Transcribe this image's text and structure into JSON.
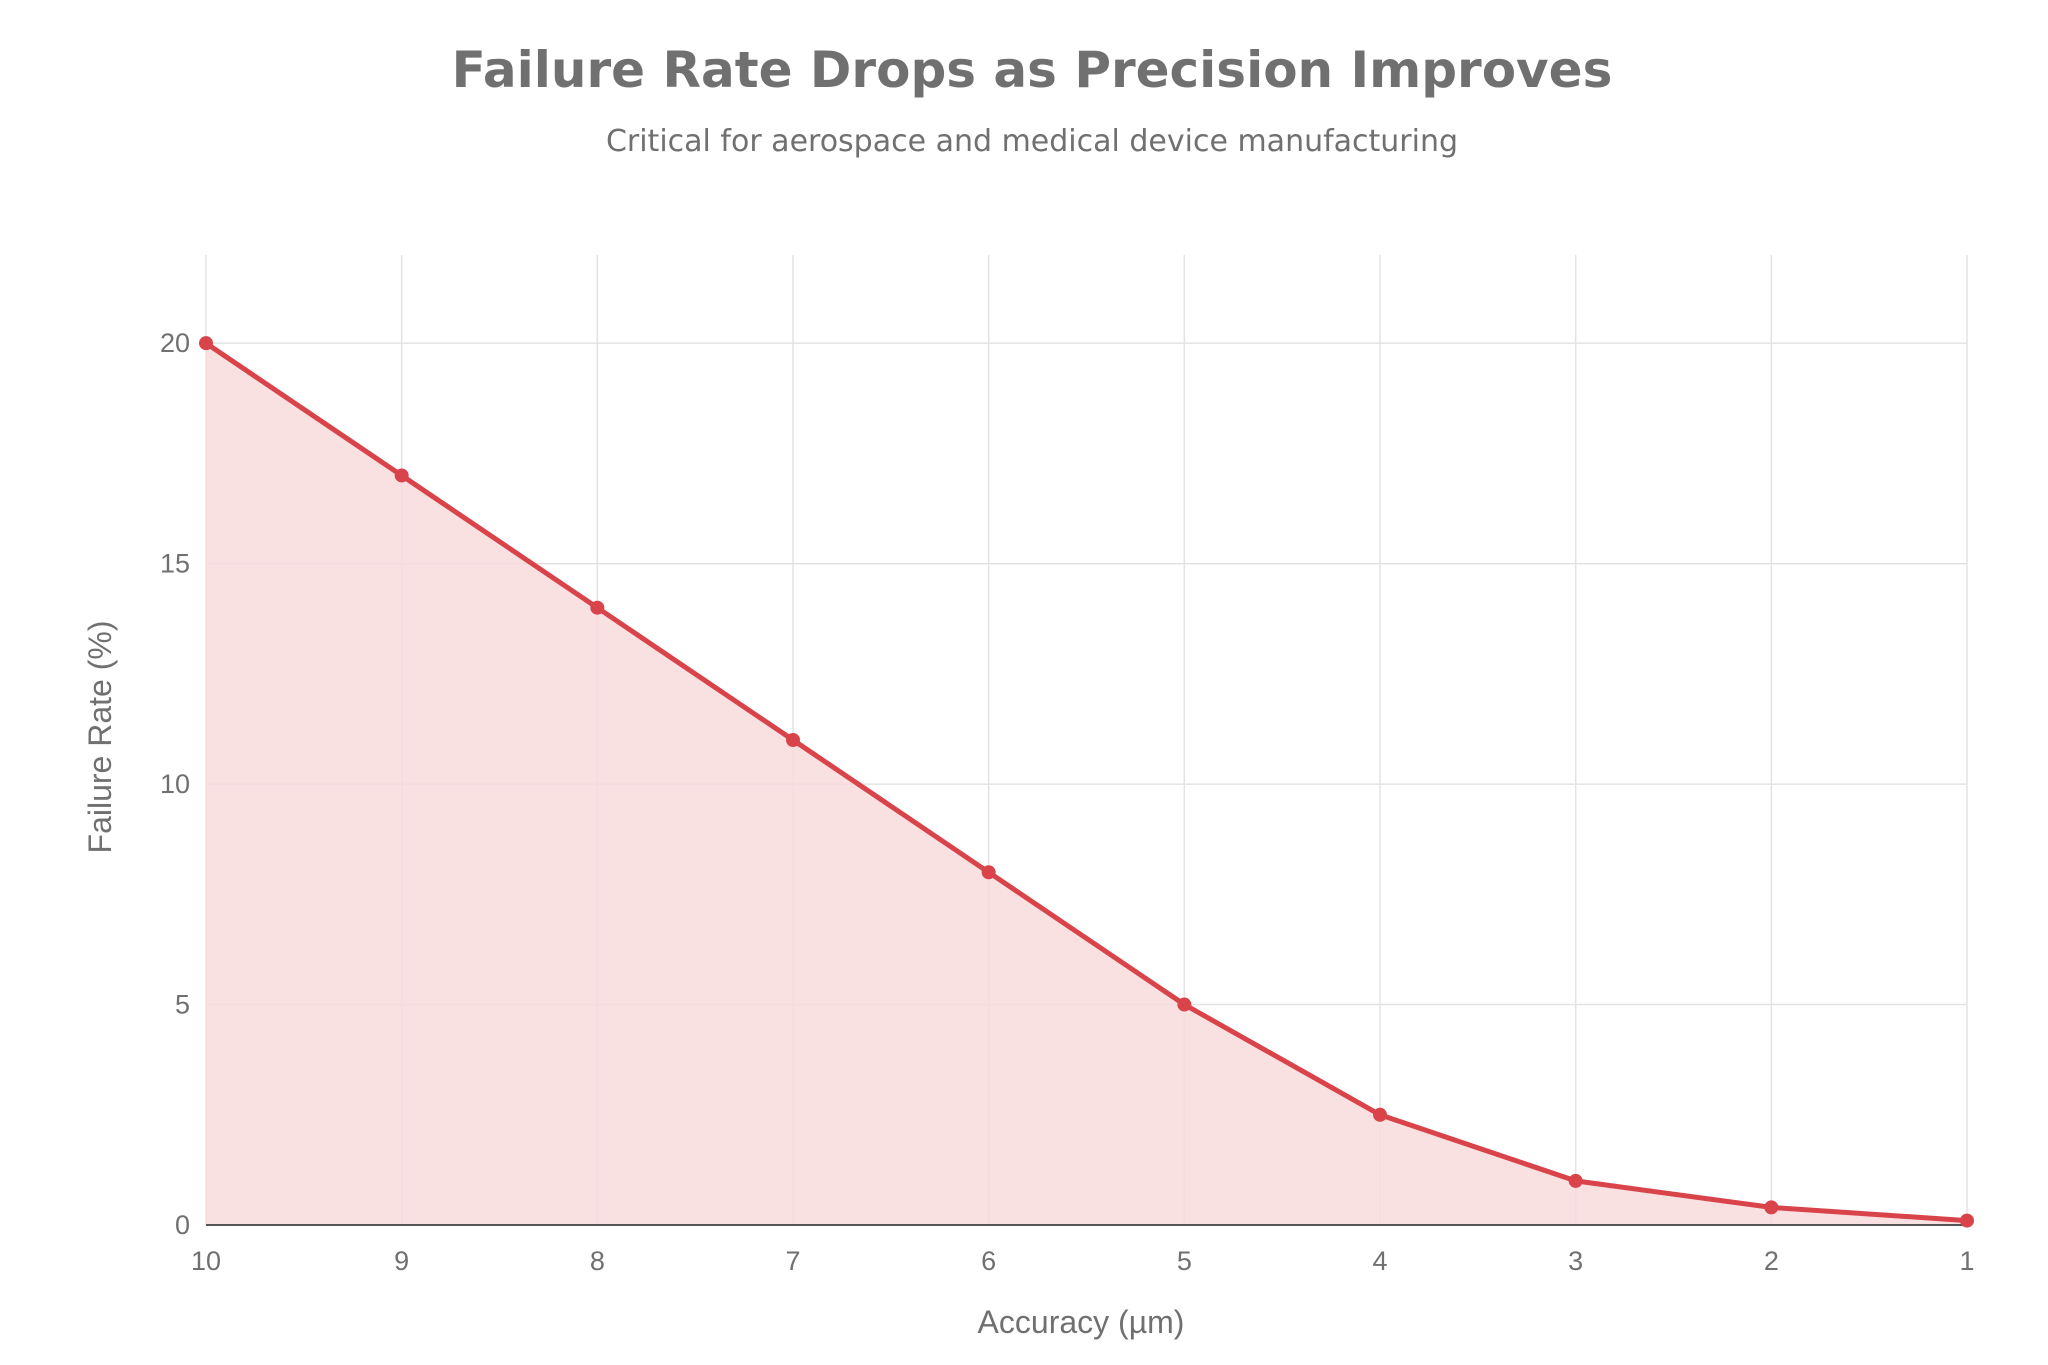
{
  "chart_data": {
    "type": "area",
    "title": "Failure Rate Drops as Precision Improves",
    "subtitle": "Critical for aerospace and medical device manufacturing",
    "xlabel": "Accuracy (µm)",
    "ylabel": "Failure Rate (%)",
    "x": [
      10,
      9,
      8,
      7,
      6,
      5,
      4,
      3,
      2,
      1
    ],
    "series": [
      {
        "values": [
          20,
          17,
          14,
          11,
          8,
          5,
          2.5,
          1,
          0.4,
          0.1
        ]
      }
    ],
    "xlim": [
      10,
      1
    ],
    "x_reversed": true,
    "ylim": [
      0,
      22
    ],
    "x_ticks": [
      10,
      9,
      8,
      7,
      6,
      5,
      4,
      3,
      2,
      1
    ],
    "y_ticks": [
      0,
      5,
      10,
      15,
      20
    ],
    "grid": true,
    "legend": false,
    "colors": {
      "line": "#d9434a",
      "fill": "#f8dbdc",
      "grid": "#e3e3e3",
      "text": "#707070"
    }
  }
}
